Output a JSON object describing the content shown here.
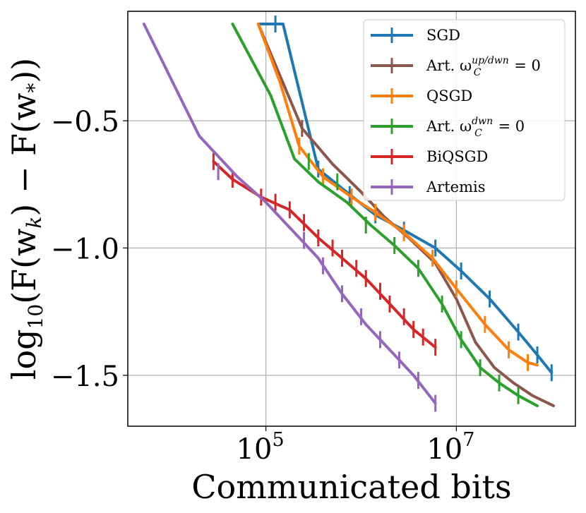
{
  "chart_data": {
    "type": "line",
    "title": "",
    "xlabel": "Communicated bits",
    "ylabel": "log10(F(w_k) − F(w_*))",
    "ylabel_parts": {
      "base": "log",
      "sub": "10",
      "rest": "(F(w",
      "k": "k",
      "mid": ") − F(w",
      "star": "*",
      "end": "))"
    },
    "x_scale": "log10",
    "xlim_log10": [
      3.55,
      8.25
    ],
    "ylim": [
      -1.7,
      -0.07
    ],
    "x_ticks": [
      {
        "label": "10",
        "exp": "5",
        "log10": 5
      },
      {
        "label": "10",
        "exp": "7",
        "log10": 7
      }
    ],
    "y_ticks": [
      {
        "label": "−0.5",
        "value": -0.5
      },
      {
        "label": "−1.0",
        "value": -1.0
      },
      {
        "label": "−1.5",
        "value": -1.5
      }
    ],
    "grid": true,
    "legend_position": "top-right",
    "series": [
      {
        "name": "SGD",
        "legend": "SGD",
        "color": "#1f77b4",
        "x_log10": [
          4.92,
          5.18,
          5.55,
          5.88,
          6.15,
          6.45,
          6.78,
          7.05,
          7.35,
          7.65,
          7.85,
          8.0
        ],
        "y": [
          -0.12,
          -0.12,
          -0.69,
          -0.79,
          -0.87,
          -0.93,
          -1.0,
          -1.09,
          -1.2,
          -1.33,
          -1.42,
          -1.49
        ],
        "errorbars": [
          [
            5.1,
            -0.12
          ],
          [
            5.55,
            -0.69
          ],
          [
            5.88,
            -0.79
          ],
          [
            6.15,
            -0.87
          ],
          [
            6.45,
            -0.93
          ],
          [
            6.78,
            -1.0
          ],
          [
            7.05,
            -1.09
          ],
          [
            7.35,
            -1.2
          ],
          [
            7.65,
            -1.33
          ],
          [
            7.85,
            -1.42
          ],
          [
            8.0,
            -1.49
          ]
        ]
      },
      {
        "name": "Art. up/dwn",
        "legend": "Art. ω",
        "legend_sub": "C",
        "legend_sup": "up/dwn",
        "legend_tail": " = 0",
        "color": "#8c564b",
        "x_log10": [
          4.92,
          5.38,
          5.7,
          6.0,
          6.25,
          6.5,
          6.78,
          7.0,
          7.2,
          7.4,
          7.6,
          7.8,
          8.02
        ],
        "y": [
          -0.12,
          -0.53,
          -0.67,
          -0.78,
          -0.88,
          -0.96,
          -1.06,
          -1.2,
          -1.37,
          -1.47,
          -1.53,
          -1.58,
          -1.62
        ],
        "errorbars": [
          [
            5.38,
            -0.53
          ]
        ]
      },
      {
        "name": "QSGD",
        "legend": "QSGD",
        "color": "#ff7f0e",
        "x_log10": [
          4.92,
          5.15,
          5.35,
          5.6,
          5.9,
          6.15,
          6.45,
          6.75,
          7.0,
          7.3,
          7.55,
          7.75,
          7.85
        ],
        "y": [
          -0.12,
          -0.35,
          -0.6,
          -0.72,
          -0.8,
          -0.86,
          -0.94,
          -1.04,
          -1.16,
          -1.3,
          -1.4,
          -1.45,
          -1.46
        ],
        "errorbars": [
          [
            5.35,
            -0.6
          ],
          [
            5.6,
            -0.72
          ],
          [
            5.9,
            -0.8
          ],
          [
            6.15,
            -0.86
          ],
          [
            6.45,
            -0.94
          ],
          [
            6.75,
            -1.04
          ],
          [
            7.0,
            -1.16
          ],
          [
            7.3,
            -1.3
          ],
          [
            7.55,
            -1.4
          ],
          [
            7.75,
            -1.45
          ]
        ]
      },
      {
        "name": "Art. dwn",
        "legend": "Art. ω",
        "legend_sub": "C",
        "legend_sup": "dwn",
        "legend_tail": " = 0",
        "color": "#2ca02c",
        "x_log10": [
          4.65,
          5.05,
          5.3,
          5.55,
          5.85,
          6.1,
          6.35,
          6.6,
          6.85,
          7.05,
          7.25,
          7.45,
          7.65,
          7.85
        ],
        "y": [
          -0.12,
          -0.4,
          -0.65,
          -0.74,
          -0.82,
          -0.91,
          -0.99,
          -1.08,
          -1.22,
          -1.36,
          -1.47,
          -1.53,
          -1.58,
          -1.62
        ],
        "errorbars": [
          [
            5.45,
            -0.66
          ],
          [
            5.75,
            -0.74
          ],
          [
            6.05,
            -0.91
          ],
          [
            6.35,
            -0.99
          ],
          [
            6.6,
            -1.08
          ],
          [
            6.85,
            -1.22
          ],
          [
            7.05,
            -1.36
          ],
          [
            7.25,
            -1.47
          ],
          [
            7.45,
            -1.53
          ],
          [
            7.65,
            -1.58
          ]
        ]
      },
      {
        "name": "BiQSGD",
        "legend": "BiQSGD",
        "color": "#d62728",
        "x_log10": [
          4.45,
          4.65,
          4.95,
          5.25,
          5.55,
          5.8,
          6.05,
          6.3,
          6.55,
          6.78
        ],
        "y": [
          -0.66,
          -0.73,
          -0.8,
          -0.85,
          -0.96,
          -1.04,
          -1.12,
          -1.22,
          -1.32,
          -1.39
        ],
        "errorbars": [
          [
            4.45,
            -0.66
          ],
          [
            4.65,
            -0.73
          ],
          [
            4.95,
            -0.8
          ],
          [
            5.1,
            -0.82
          ],
          [
            5.25,
            -0.85
          ],
          [
            5.4,
            -0.9
          ],
          [
            5.55,
            -0.96
          ],
          [
            5.7,
            -1.0
          ],
          [
            5.8,
            -1.04
          ],
          [
            5.95,
            -1.08
          ],
          [
            6.05,
            -1.12
          ],
          [
            6.2,
            -1.17
          ],
          [
            6.3,
            -1.22
          ],
          [
            6.45,
            -1.27
          ],
          [
            6.55,
            -1.32
          ],
          [
            6.65,
            -1.35
          ],
          [
            6.78,
            -1.39
          ]
        ]
      },
      {
        "name": "Artemis",
        "legend": "Artemis",
        "color": "#9467bd",
        "x_log10": [
          3.72,
          4.3,
          4.7,
          5.0,
          5.3,
          5.55,
          5.8,
          6.05,
          6.3,
          6.55,
          6.78
        ],
        "y": [
          -0.12,
          -0.56,
          -0.72,
          -0.82,
          -0.94,
          -1.04,
          -1.18,
          -1.3,
          -1.4,
          -1.5,
          -1.61
        ],
        "errorbars": [
          [
            4.5,
            -0.7
          ],
          [
            5.4,
            -0.97
          ],
          [
            5.6,
            -1.07
          ],
          [
            5.8,
            -1.18
          ],
          [
            6.0,
            -1.27
          ],
          [
            6.2,
            -1.36
          ],
          [
            6.4,
            -1.44
          ],
          [
            6.6,
            -1.52
          ],
          [
            6.78,
            -1.61
          ]
        ]
      }
    ]
  }
}
